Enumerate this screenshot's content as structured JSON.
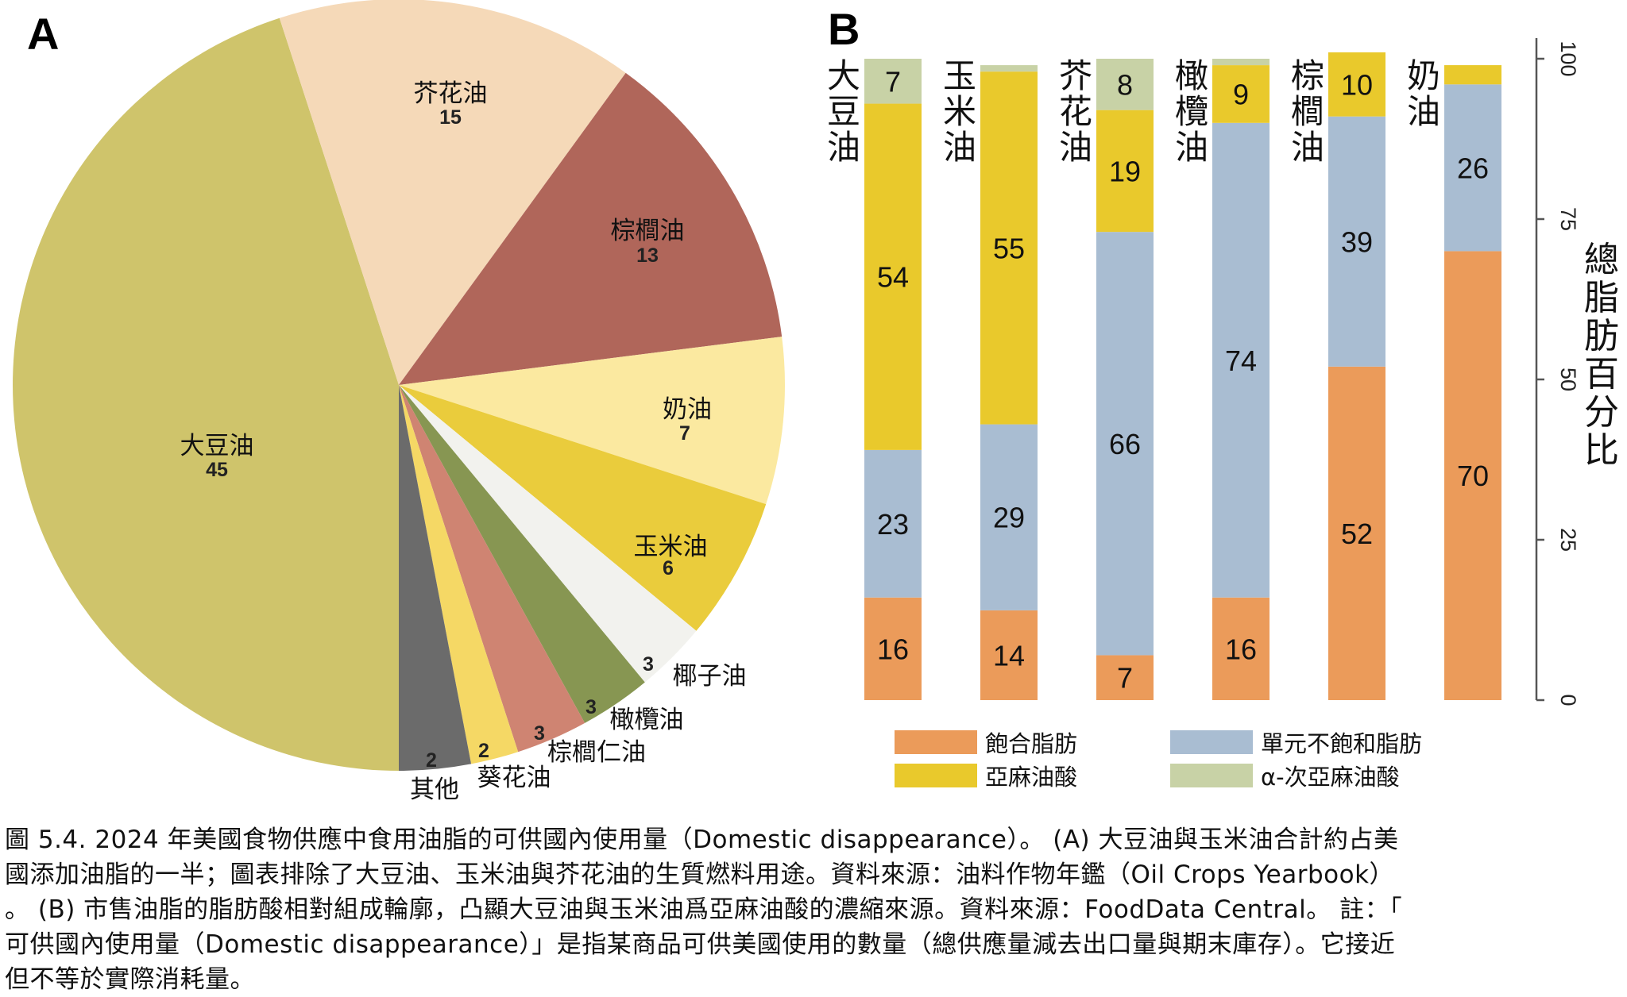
{
  "panels": {
    "a_label": "A",
    "b_label": "B"
  },
  "chart_data": [
    {
      "type": "pie",
      "title": "",
      "panel": "A",
      "direction": "clockwise-from-bottom",
      "slices": [
        {
          "label": "大豆油",
          "value": 45,
          "color": "#CFC46B"
        },
        {
          "label": "芥花油",
          "value": 15,
          "color": "#F5D9B8"
        },
        {
          "label": "棕櫚油",
          "value": 13,
          "color": "#B0665A"
        },
        {
          "label": "奶油",
          "value": 7,
          "color": "#FBE9A0"
        },
        {
          "label": "玉米油",
          "value": 6,
          "color": "#EACC3C"
        },
        {
          "label": "椰子油",
          "value": 3,
          "color": "#F2F2EE"
        },
        {
          "label": "橄欖油",
          "value": 3,
          "color": "#879652"
        },
        {
          "label": "棕櫚仁油",
          "value": 3,
          "color": "#CF8472"
        },
        {
          "label": "葵花油",
          "value": 2,
          "color": "#F5D865"
        },
        {
          "label": "其他",
          "value": 2,
          "color": "#6B6B6B"
        }
      ]
    },
    {
      "type": "bar",
      "stacked": true,
      "panel": "B",
      "title": "",
      "xlabel": "",
      "ylabel": "總脂肪百分比",
      "ylim": [
        0,
        100
      ],
      "yticks": [
        "0",
        "25",
        "50",
        "75",
        "100"
      ],
      "ytick_values": [
        0,
        25,
        50,
        75,
        100
      ],
      "y_axis_position": "right",
      "categories": [
        "大豆油",
        "玉米油",
        "芥花油",
        "橄欖油",
        "棕櫚油",
        "奶油"
      ],
      "series": [
        {
          "name": "飽合脂肪",
          "color": "#EB9B5A",
          "values": [
            16,
            14,
            7,
            16,
            52,
            70
          ],
          "labels": [
            "16",
            "14",
            "7",
            "16",
            "52",
            "70"
          ]
        },
        {
          "name": "單元不飽和脂肪",
          "color": "#A9BDD2",
          "values": [
            23,
            29,
            66,
            74,
            39,
            26
          ],
          "labels": [
            "23",
            "29",
            "66",
            "74",
            "39",
            "26"
          ]
        },
        {
          "name": "亞麻油酸",
          "color": "#E9C92C",
          "values": [
            54,
            55,
            19,
            9,
            10,
            3
          ],
          "labels": [
            "54",
            "55",
            "19",
            "9",
            "10",
            ""
          ]
        },
        {
          "name": "α-次亞麻油酸",
          "color": "#C8D2A6",
          "values": [
            7,
            1,
            8,
            1,
            0,
            0
          ],
          "labels": [
            "7",
            "",
            "8",
            "",
            "",
            ""
          ]
        }
      ],
      "legend": {
        "placement": "bottom",
        "columns": 2
      }
    }
  ],
  "caption": {
    "lines": [
      "圖 5.4. 2024 年美國食物供應中食用油脂的可供國內使用量（Domestic disappearance）。 (A) 大豆油與玉米油合計約占美",
      "國添加油脂的一半；圖表排除了大豆油、玉米油與芥花油的生質燃料用途。資料來源：油料作物年鑑（Oil Crops Yearbook）",
      "。 (B) 市售油脂的脂肪酸相對組成輪廓，凸顯大豆油與玉米油爲亞麻油酸的濃縮來源。資料來源：FoodData Central。 註：「",
      "可供國內使用量（Domestic disappearance）」是指某商品可供美國使用的數量（總供應量減去出口量與期末庫存）。它接近",
      "但不等於實際消耗量。"
    ]
  }
}
